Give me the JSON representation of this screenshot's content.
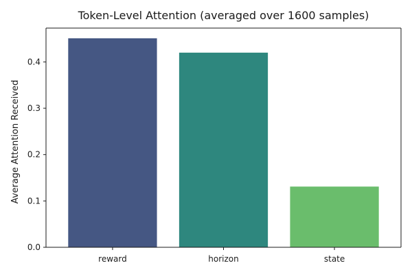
{
  "chart_data": {
    "type": "bar",
    "title": "Token-Level Attention (averaged over 1600 samples)",
    "xlabel": "",
    "ylabel": "Average Attention Received",
    "categories": [
      "reward",
      "horizon",
      "state"
    ],
    "values": [
      0.451,
      0.42,
      0.131
    ],
    "colors": [
      "#455783",
      "#2e877e",
      "#6abd6c"
    ],
    "ylim": [
      0,
      0.473
    ],
    "yticks": [
      0.0,
      0.1,
      0.2,
      0.3,
      0.4
    ],
    "ytick_labels": [
      "0.0",
      "0.1",
      "0.2",
      "0.3",
      "0.4"
    ],
    "grid": false,
    "legend": "none"
  }
}
